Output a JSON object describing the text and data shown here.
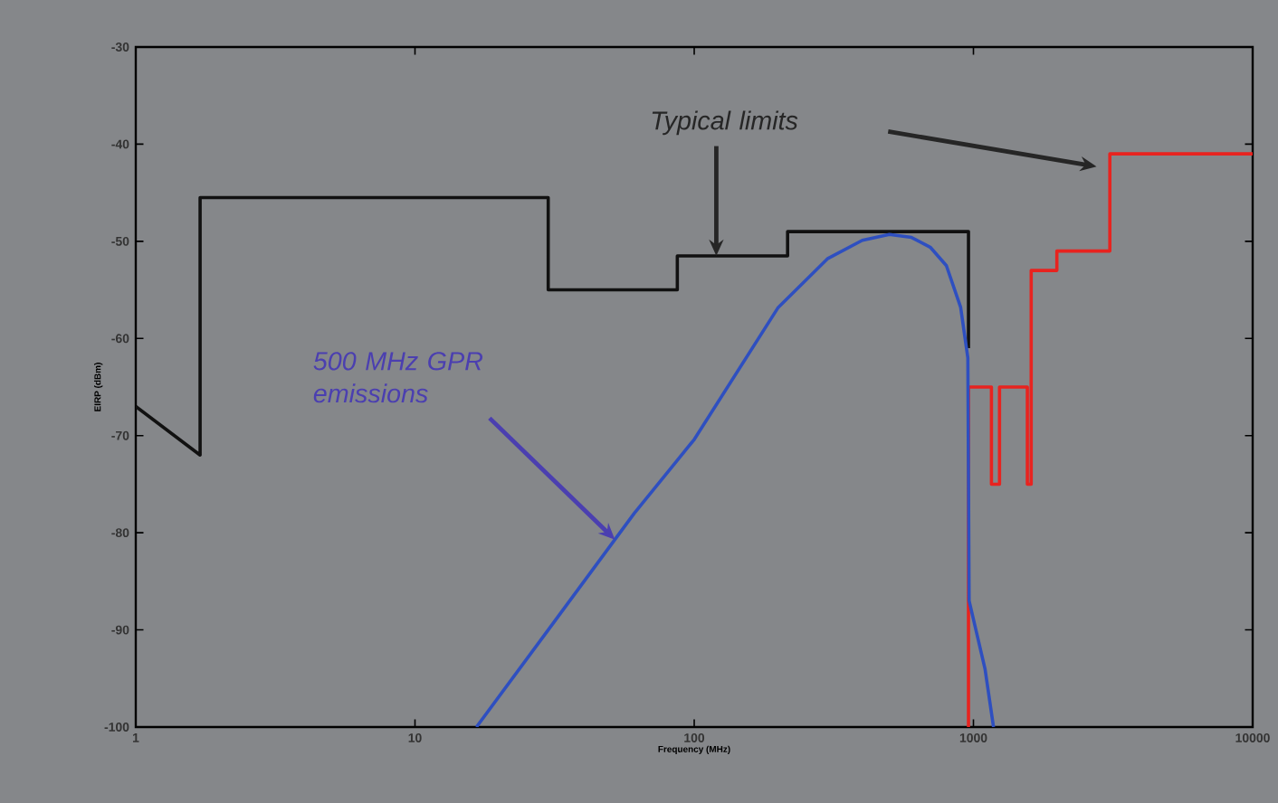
{
  "chart_data": {
    "type": "line",
    "xlabel": "Frequency (MHz)",
    "ylabel": "EIRP (dBm)",
    "log": "x",
    "xlim": [
      1,
      10000
    ],
    "ylim": [
      -100,
      -30
    ],
    "xticks": [
      1,
      10,
      100,
      1000,
      10000
    ],
    "yticks": [
      -100,
      -90,
      -80,
      -70,
      -60,
      -50,
      -40,
      -30
    ],
    "grid": false,
    "marker": "none",
    "line_style": "solid",
    "series": [
      {
        "color": "#111111",
        "x": [
          1,
          1.7,
          1.7,
          30,
          30,
          87,
          87,
          216,
          216,
          960,
          960
        ],
        "values": [
          -67,
          -72,
          -45.5,
          -45.5,
          -55,
          -55,
          -51.5,
          -51.5,
          -49,
          -49,
          -61
        ]
      },
      {
        "color": "#e8231f",
        "x": [
          960,
          960,
          1160,
          1160,
          1240,
          1240,
          1560,
          1560,
          1610,
          1610,
          1990,
          1990,
          3080,
          3080,
          10000
        ],
        "values": [
          -100,
          -65,
          -65,
          -75,
          -75,
          -65,
          -65,
          -75,
          -75,
          -53,
          -53,
          -51,
          -51,
          -41,
          -41
        ]
      },
      {
        "color": "#2e4fc0",
        "x": [
          16.6,
          30,
          61,
          100,
          200,
          300,
          400,
          500,
          600,
          700,
          800,
          900,
          955,
          965,
          1100,
          1180
        ],
        "values": [
          -100,
          -90,
          -78,
          -70.4,
          -56.8,
          -51.8,
          -49.9,
          -49.3,
          -49.6,
          -50.6,
          -52.5,
          -56.8,
          -62,
          -87,
          -94,
          -100
        ]
      }
    ],
    "annotations": [
      {
        "text": "Typical limits",
        "x": 120,
        "y": -51.5
      },
      {
        "text": "500 MHz GPR emissions",
        "x": 52,
        "y": -80.7
      }
    ]
  }
}
